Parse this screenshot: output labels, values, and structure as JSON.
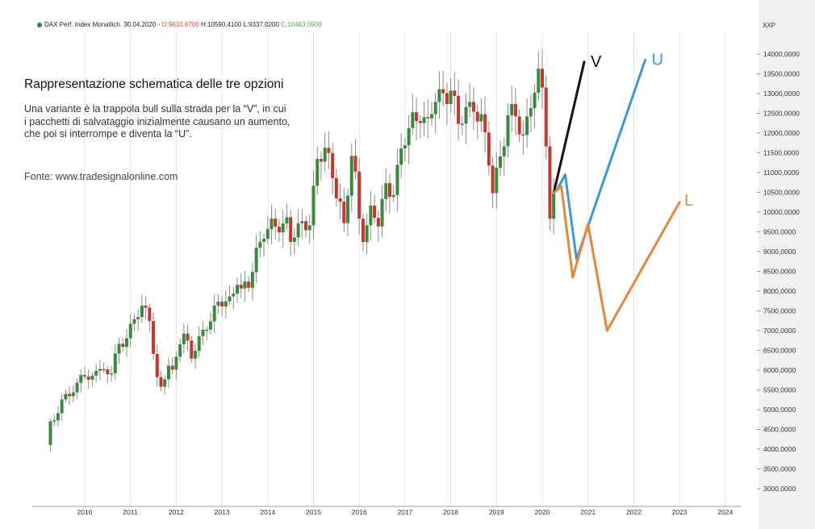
{
  "header": {
    "instrument": "DAX Perf. Index Monatlich",
    "date": "30.04.2020",
    "open_label": "O:9610,6700",
    "high_label": "H:10590,4100",
    "low_label": "L:9337,0200",
    "close_label": "C:10483,0900",
    "ticker": "XXP"
  },
  "panel": {
    "title": "Rappresentazione schematica delle tre opzioni",
    "description": "Una variante è la trappola bull sulla strada per la “V”, in cui i pacchetti di salvataggio inizialmente causano un aumento, che poi si interrompe e diventa la “U”.",
    "source": "Fonte: www.tradesignalonline.com"
  },
  "colors": {
    "up_candle": "#3a8a3e",
    "down_candle": "#c8372d",
    "wick": "#8a8a8a",
    "v_scenario": "#111111",
    "u_scenario": "#3a9ad9",
    "l_scenario": "#e8853a",
    "axis_panel": "#f1f1f1",
    "grid": "#e4e4e4"
  },
  "chart_data": {
    "type": "candlestick",
    "title": "",
    "xlabel": "",
    "ylabel": "",
    "x_ticks": [
      "2010",
      "2011",
      "2012",
      "2013",
      "2014",
      "2015",
      "2016",
      "2017",
      "2018",
      "2019",
      "2020",
      "2021",
      "2022",
      "2023",
      "2024"
    ],
    "y_ticks": [
      "3000,0000",
      "3500,0000",
      "4000,0000",
      "4500,0000",
      "5000,0000",
      "5500,0000",
      "6000,0000",
      "6500,0000",
      "7000,0000",
      "7500,0000",
      "8000,0000",
      "8500,0000",
      "9000,0000",
      "9500,0000",
      "10000,0000",
      "10500,0000",
      "11000,0000",
      "11500,0000",
      "12000,0000",
      "12500,0000",
      "13000,0000",
      "13500,0000",
      "14000,0000"
    ],
    "ylim": [
      2500,
      14800
    ],
    "grid": "vertical",
    "series": [
      {
        "name": "",
        "kind": "monthly_close_approx",
        "points": [
          [
            "2009-03",
            4085
          ],
          [
            "2009-04",
            4770
          ],
          [
            "2009-06",
            4810
          ],
          [
            "2009-08",
            5460
          ],
          [
            "2009-10",
            5415
          ],
          [
            "2009-12",
            5960
          ],
          [
            "2010-02",
            5600
          ],
          [
            "2010-04",
            6135
          ],
          [
            "2010-06",
            5970
          ],
          [
            "2010-08",
            5925
          ],
          [
            "2010-10",
            6600
          ],
          [
            "2010-12",
            6915
          ],
          [
            "2011-02",
            7270
          ],
          [
            "2011-04",
            7515
          ],
          [
            "2011-06",
            7375
          ],
          [
            "2011-08",
            5785
          ],
          [
            "2011-09",
            5500
          ],
          [
            "2011-11",
            6090
          ],
          [
            "2011-12",
            5900
          ],
          [
            "2012-02",
            6860
          ],
          [
            "2012-03",
            6950
          ],
          [
            "2012-05",
            6265
          ],
          [
            "2012-07",
            6775
          ],
          [
            "2012-09",
            7215
          ],
          [
            "2012-12",
            7610
          ],
          [
            "2013-03",
            7795
          ],
          [
            "2013-05",
            8350
          ],
          [
            "2013-06",
            7960
          ],
          [
            "2013-08",
            8105
          ],
          [
            "2013-10",
            9035
          ],
          [
            "2013-12",
            9550
          ],
          [
            "2014-03",
            9555
          ],
          [
            "2014-06",
            9830
          ],
          [
            "2014-07",
            9400
          ],
          [
            "2014-09",
            9475
          ],
          [
            "2014-12",
            9805
          ],
          [
            "2015-02",
            11400
          ],
          [
            "2015-04",
            11450
          ],
          [
            "2015-06",
            10945
          ],
          [
            "2015-08",
            10260
          ],
          [
            "2015-09",
            9660
          ],
          [
            "2015-11",
            11380
          ],
          [
            "2015-12",
            10740
          ],
          [
            "2016-01",
            9800
          ],
          [
            "2016-02",
            9500
          ],
          [
            "2016-04",
            10040
          ],
          [
            "2016-06",
            9680
          ],
          [
            "2016-08",
            10590
          ],
          [
            "2016-10",
            10665
          ],
          [
            "2016-12",
            11480
          ],
          [
            "2017-03",
            12310
          ],
          [
            "2017-05",
            12615
          ],
          [
            "2017-07",
            12120
          ],
          [
            "2017-09",
            12830
          ],
          [
            "2017-11",
            13025
          ],
          [
            "2018-01",
            13190
          ],
          [
            "2018-03",
            12095
          ],
          [
            "2018-05",
            12605
          ],
          [
            "2018-07",
            12805
          ],
          [
            "2018-09",
            12245
          ],
          [
            "2018-11",
            11255
          ],
          [
            "2018-12",
            10560
          ],
          [
            "2019-02",
            11515
          ],
          [
            "2019-04",
            12345
          ],
          [
            "2019-06",
            12400
          ],
          [
            "2019-08",
            11940
          ],
          [
            "2019-10",
            12865
          ],
          [
            "2019-12",
            13250
          ],
          [
            "2020-01",
            12980
          ],
          [
            "2020-02",
            11890
          ],
          [
            "2020-03",
            9935
          ],
          [
            "2020-04",
            10483
          ]
        ]
      },
      {
        "name": "V",
        "kind": "scenario",
        "points": [
          [
            "2020-04",
            10480
          ],
          [
            "2020-12",
            13800
          ]
        ]
      },
      {
        "name": "U",
        "kind": "scenario",
        "points": [
          [
            "2020-04",
            10480
          ],
          [
            "2020-05",
            10580
          ],
          [
            "2020-07",
            10950
          ],
          [
            "2020-10",
            8800
          ],
          [
            "2022-04",
            13850
          ]
        ]
      },
      {
        "name": "L",
        "kind": "scenario",
        "points": [
          [
            "2020-04",
            10480
          ],
          [
            "2020-06",
            10650
          ],
          [
            "2020-09",
            8350
          ],
          [
            "2021-01",
            9700
          ],
          [
            "2021-06",
            7000
          ],
          [
            "2023-01",
            10250
          ]
        ]
      }
    ],
    "annotations": [
      "V",
      "U",
      "L"
    ]
  }
}
